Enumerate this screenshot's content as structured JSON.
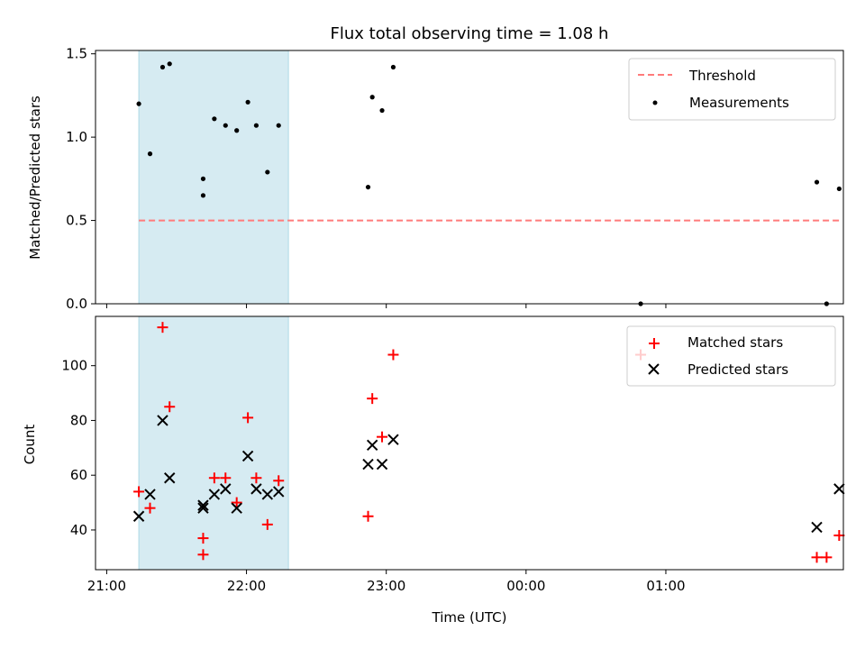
{
  "chart_data": {
    "title": "Flux total observing time = 1.08 h",
    "xlabel": "Time (UTC)",
    "x_ticks": [
      "21:00",
      "22:00",
      "23:00",
      "00:00",
      "01:00"
    ],
    "x_tick_hours": [
      21,
      22,
      23,
      24,
      25
    ],
    "xlim_hours": [
      20.92,
      26.27
    ],
    "highlight_span_hours": [
      21.23,
      22.3
    ],
    "colors": {
      "threshold": "#ff7b7b",
      "measurements": "#000000",
      "matched": "#ff0000",
      "predicted": "#000000",
      "highlight": "#add8e6"
    },
    "top": {
      "type": "scatter",
      "ylabel": "Matched/Predicted stars",
      "ylim": [
        0,
        1.52
      ],
      "y_ticks": [
        "0.0",
        "0.5",
        "1.0",
        "1.5"
      ],
      "y_tick_values": [
        0,
        0.5,
        1.0,
        1.5
      ],
      "legend_position": "top-right",
      "threshold": {
        "name": "Threshold",
        "value": 0.5,
        "x_range_hours": [
          21.23,
          26.24
        ]
      },
      "measurements": {
        "name": "Measurements",
        "x_hours": [
          21.23,
          21.31,
          21.4,
          21.45,
          21.69,
          21.69,
          21.77,
          21.85,
          21.93,
          22.01,
          22.07,
          22.15,
          22.23,
          22.87,
          22.9,
          22.97,
          23.05,
          24.82,
          26.08,
          26.15,
          26.24
        ],
        "values": [
          1.2,
          0.9,
          1.42,
          1.44,
          0.75,
          0.65,
          1.11,
          1.07,
          1.04,
          1.21,
          1.07,
          0.79,
          1.07,
          0.7,
          1.24,
          1.16,
          1.42,
          0.0,
          0.73,
          0.0,
          0.69
        ]
      }
    },
    "bottom": {
      "type": "scatter",
      "ylabel": "Count",
      "ylim": [
        25.5,
        118
      ],
      "y_ticks": [
        "40",
        "60",
        "80",
        "100"
      ],
      "y_tick_values": [
        40,
        60,
        80,
        100
      ],
      "legend_position": "top-right",
      "series": [
        {
          "name": "Matched stars",
          "marker": "plus",
          "x_hours": [
            21.23,
            21.31,
            21.4,
            21.45,
            21.69,
            21.69,
            21.77,
            21.85,
            21.93,
            22.01,
            22.07,
            22.15,
            22.23,
            22.87,
            22.9,
            22.97,
            23.05,
            24.82,
            26.08,
            26.15,
            26.24
          ],
          "values": [
            54,
            48,
            114,
            85,
            37,
            31,
            59,
            59,
            50,
            81,
            59,
            42,
            58,
            45,
            88,
            74,
            104,
            104,
            30,
            30,
            38
          ]
        },
        {
          "name": "Predicted stars",
          "marker": "x",
          "x_hours": [
            21.23,
            21.31,
            21.4,
            21.45,
            21.69,
            21.69,
            21.77,
            21.85,
            21.93,
            22.01,
            22.07,
            22.15,
            22.23,
            22.87,
            22.9,
            22.97,
            23.05,
            26.08,
            26.24
          ],
          "values": [
            45,
            53,
            80,
            59,
            49,
            48,
            53,
            55,
            48,
            67,
            55,
            53,
            54,
            64,
            71,
            64,
            73,
            41,
            55
          ]
        }
      ]
    }
  }
}
